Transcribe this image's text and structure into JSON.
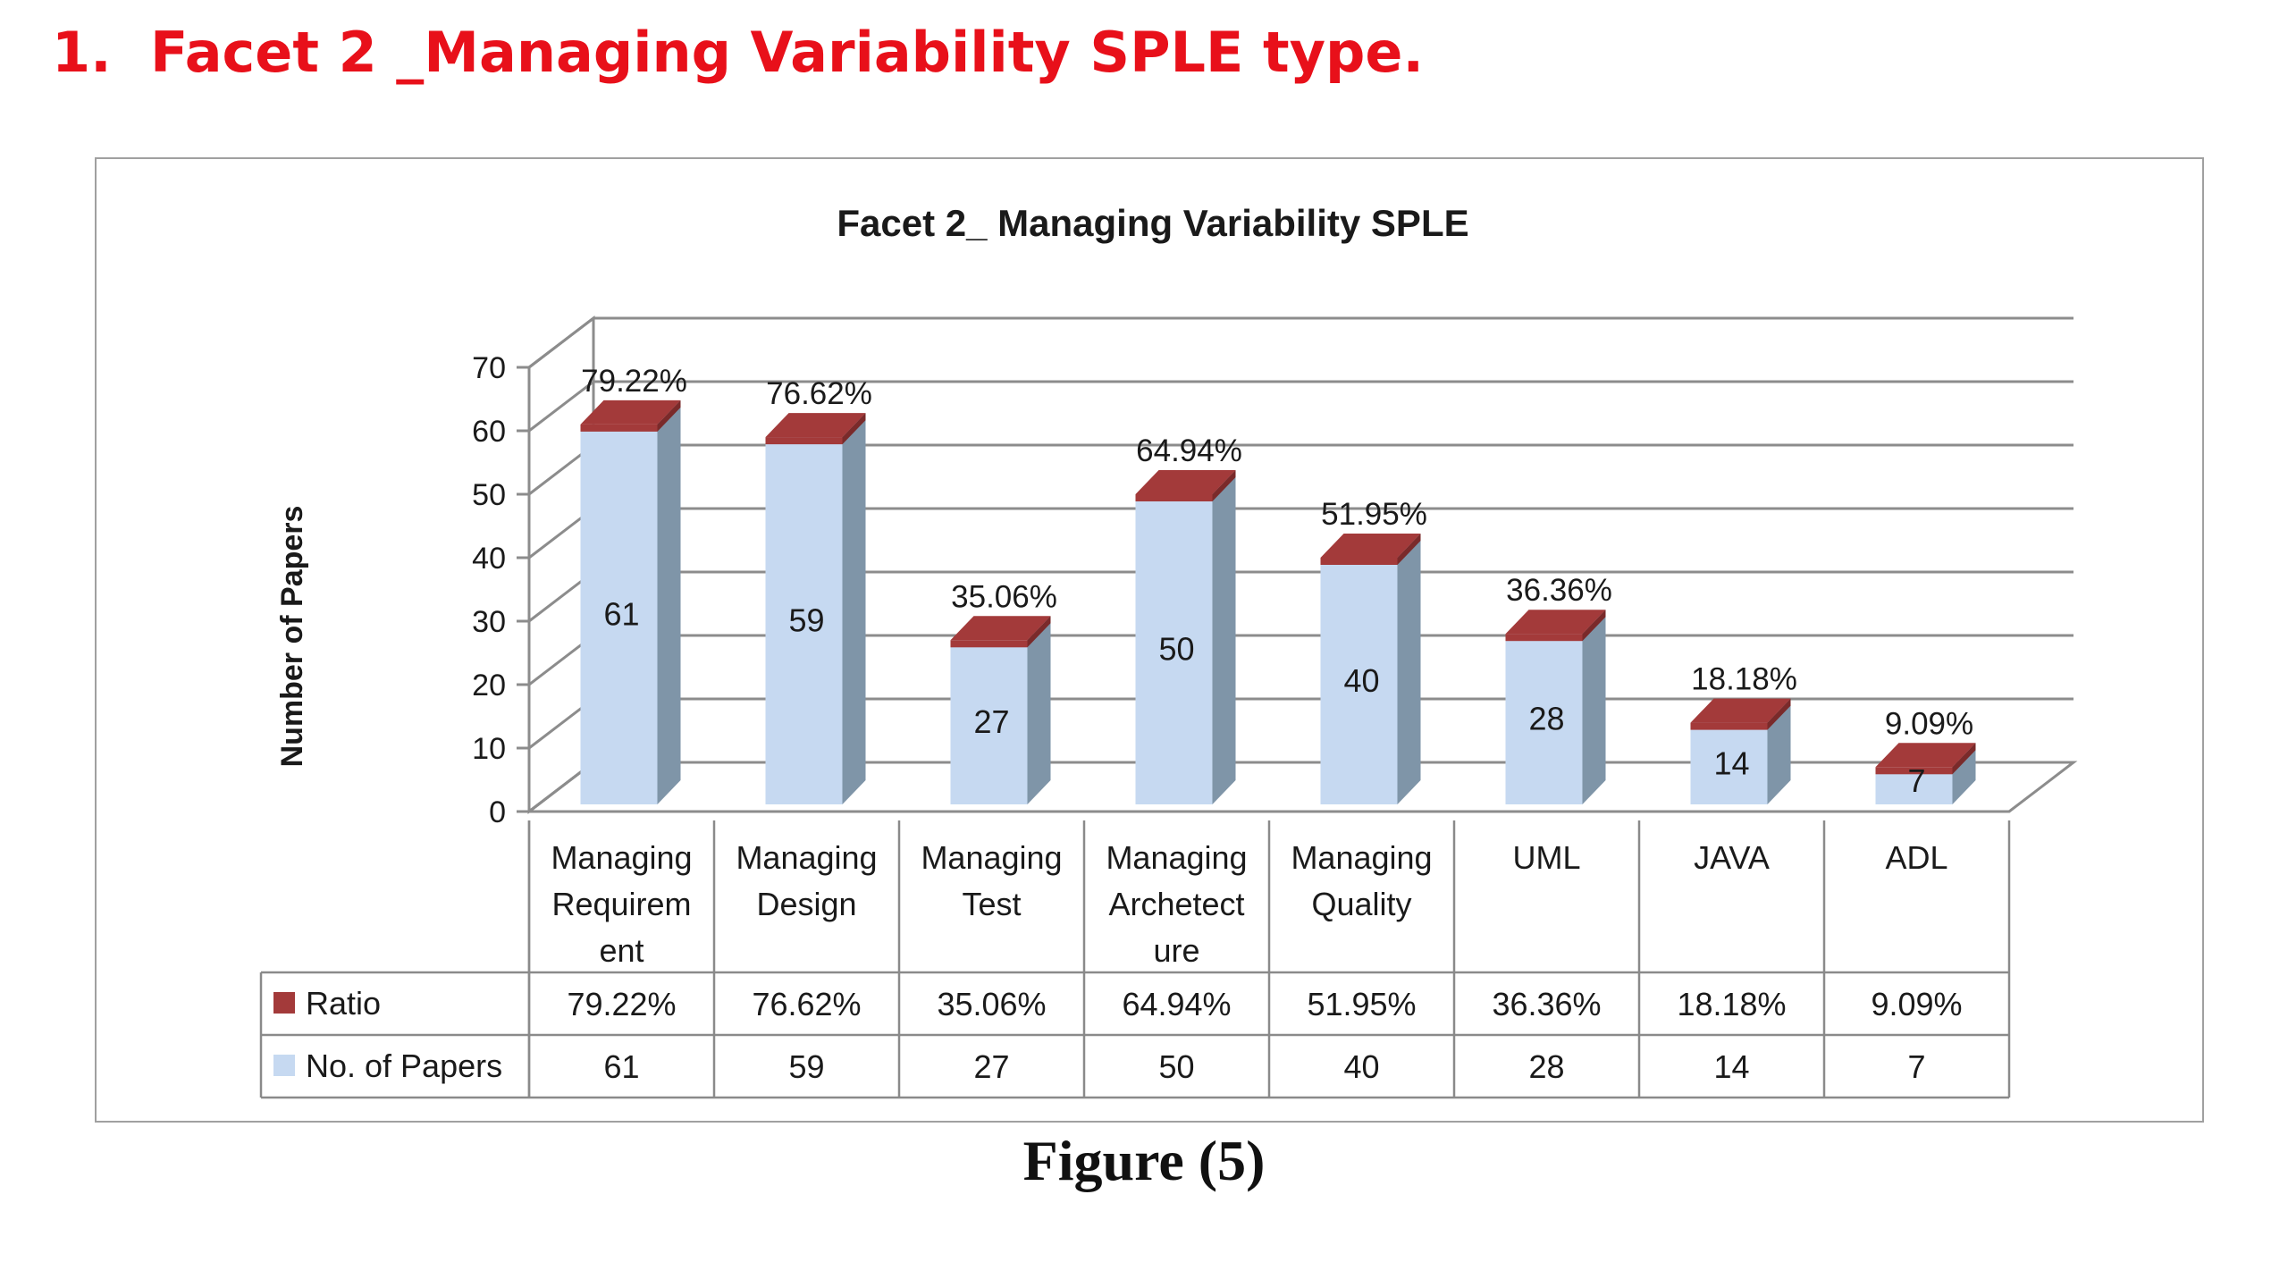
{
  "heading": {
    "number": "1.",
    "text": "Facet 2 _Managing Variability SPLE type."
  },
  "caption": "Figure (5)",
  "colors": {
    "heading": "#e8101a",
    "bar_front": "#c6d9f1",
    "bar_side": "#7f95a8",
    "bar_cap": "#a33a3a",
    "grid": "#8c8c8c"
  },
  "chart_data": {
    "type": "bar",
    "title": "Facet 2_ Managing Variability SPLE",
    "ylabel": "Number of Papers",
    "xlabel": "",
    "ylim": [
      0,
      70
    ],
    "yticks": [
      0,
      10,
      20,
      30,
      40,
      50,
      60,
      70
    ],
    "grid": true,
    "style": "3d-stacked-column-with-data-table",
    "categories": [
      [
        "Managing",
        "Requirem",
        "ent"
      ],
      [
        "Managing",
        "Design"
      ],
      [
        "Managing",
        "Test"
      ],
      [
        "Managing",
        "Archetect",
        "ure"
      ],
      [
        "Managing",
        "Quality"
      ],
      [
        "UML"
      ],
      [
        "JAVA"
      ],
      [
        "ADL"
      ]
    ],
    "series": [
      {
        "name": "Ratio",
        "color": "#a33a3a",
        "values": [
          0.7922,
          0.7662,
          0.3506,
          0.6494,
          0.5195,
          0.3636,
          0.1818,
          0.0909
        ],
        "labels": [
          "79.22%",
          "76.62%",
          "35.06%",
          "64.94%",
          "51.95%",
          "36.36%",
          "18.18%",
          "9.09%"
        ]
      },
      {
        "name": "No. of Papers",
        "color": "#c6d9f1",
        "values": [
          61,
          59,
          27,
          50,
          40,
          28,
          14,
          7
        ],
        "labels": [
          "61",
          "59",
          "27",
          "50",
          "40",
          "28",
          "14",
          "7"
        ]
      }
    ]
  }
}
